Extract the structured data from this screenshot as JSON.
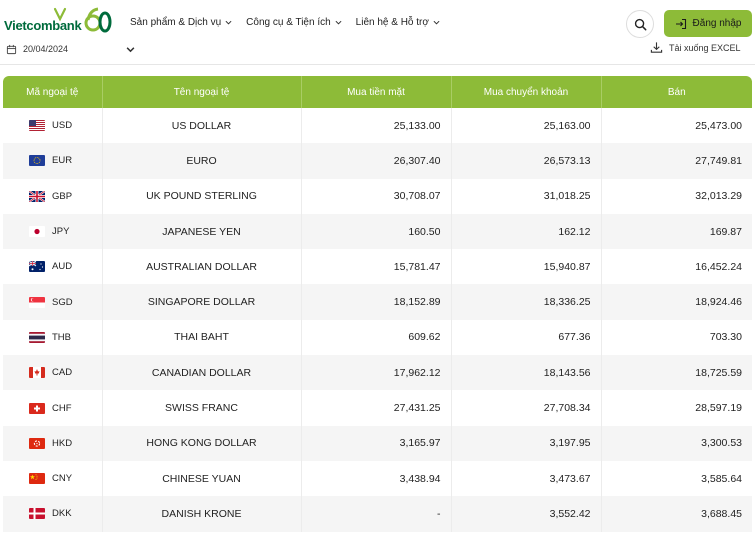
{
  "header": {
    "logo_text": "Vietcombank",
    "logo_badge": "60",
    "nav": [
      {
        "label": "Sản phẩm & Dịch vụ"
      },
      {
        "label": "Công cụ & Tiện ích"
      },
      {
        "label": "Liên hệ & Hỗ trợ"
      }
    ],
    "login_label": "Đăng nhập"
  },
  "toolbar": {
    "date_value": "20/04/2024",
    "excel_label": "Tải xuống EXCEL"
  },
  "table": {
    "columns": [
      "Mã ngoại tệ",
      "Tên ngoại tệ",
      "Mua tiền mặt",
      "Mua chuyển khoản",
      "Bán"
    ],
    "rows": [
      {
        "code": "USD",
        "name": "US DOLLAR",
        "cash": "25,133.00",
        "transfer": "25,163.00",
        "sell": "25,473.00",
        "flag": "us-flag-icon"
      },
      {
        "code": "EUR",
        "name": "EURO",
        "cash": "26,307.40",
        "transfer": "26,573.13",
        "sell": "27,749.81",
        "flag": "eu-flag-icon"
      },
      {
        "code": "GBP",
        "name": "UK POUND STERLING",
        "cash": "30,708.07",
        "transfer": "31,018.25",
        "sell": "32,013.29",
        "flag": "uk-flag-icon"
      },
      {
        "code": "JPY",
        "name": "JAPANESE YEN",
        "cash": "160.50",
        "transfer": "162.12",
        "sell": "169.87",
        "flag": "jp-flag-icon"
      },
      {
        "code": "AUD",
        "name": "AUSTRALIAN DOLLAR",
        "cash": "15,781.47",
        "transfer": "15,940.87",
        "sell": "16,452.24",
        "flag": "au-flag-icon"
      },
      {
        "code": "SGD",
        "name": "SINGAPORE DOLLAR",
        "cash": "18,152.89",
        "transfer": "18,336.25",
        "sell": "18,924.46",
        "flag": "sg-flag-icon"
      },
      {
        "code": "THB",
        "name": "THAI BAHT",
        "cash": "609.62",
        "transfer": "677.36",
        "sell": "703.30",
        "flag": "th-flag-icon"
      },
      {
        "code": "CAD",
        "name": "CANADIAN DOLLAR",
        "cash": "17,962.12",
        "transfer": "18,143.56",
        "sell": "18,725.59",
        "flag": "ca-flag-icon"
      },
      {
        "code": "CHF",
        "name": "SWISS FRANC",
        "cash": "27,431.25",
        "transfer": "27,708.34",
        "sell": "28,597.19",
        "flag": "ch-flag-icon"
      },
      {
        "code": "HKD",
        "name": "HONG KONG DOLLAR",
        "cash": "3,165.97",
        "transfer": "3,197.95",
        "sell": "3,300.53",
        "flag": "hk-flag-icon"
      },
      {
        "code": "CNY",
        "name": "CHINESE YUAN",
        "cash": "3,438.94",
        "transfer": "3,473.67",
        "sell": "3,585.64",
        "flag": "cn-flag-icon"
      },
      {
        "code": "DKK",
        "name": "DANISH KRONE",
        "cash": "-",
        "transfer": "3,552.42",
        "sell": "3,688.45",
        "flag": "dk-flag-icon"
      }
    ]
  },
  "colors": {
    "brand_green": "#8dbb38",
    "logo_green": "#006b3c"
  }
}
